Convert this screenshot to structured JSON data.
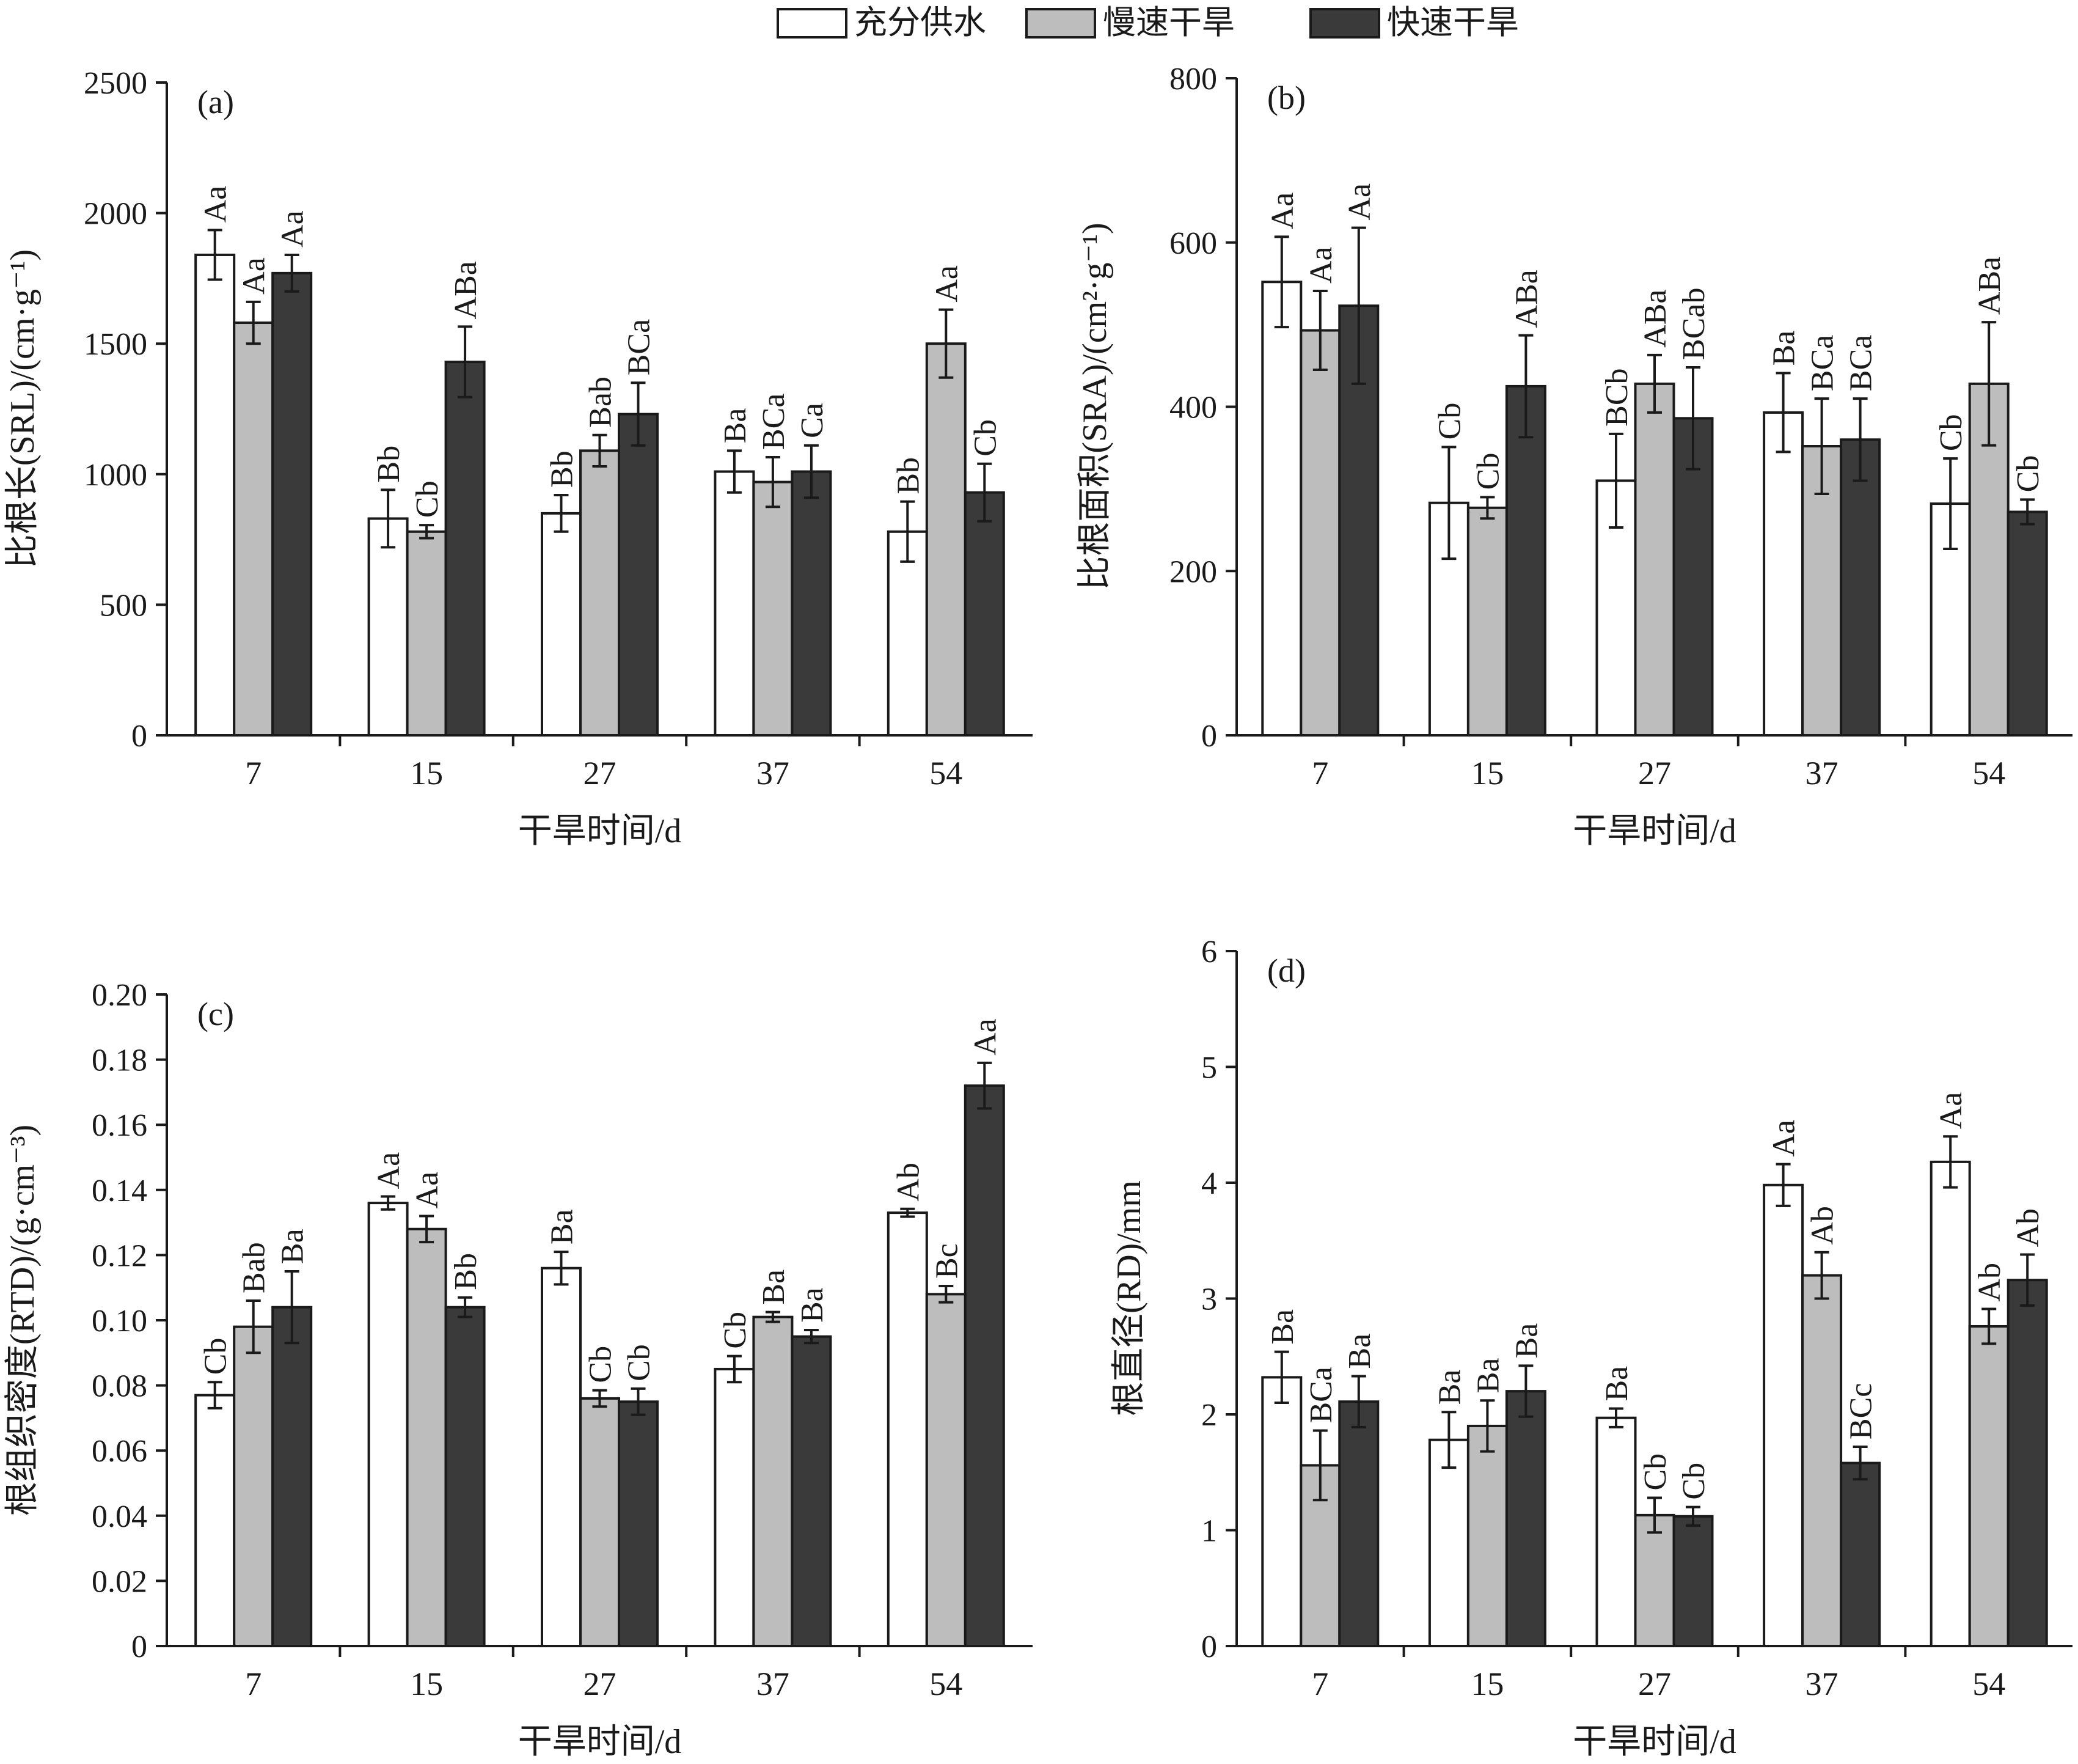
{
  "legend": [
    {
      "label": "充分供水",
      "color": "#ffffff"
    },
    {
      "label": "慢速干旱",
      "color": "#bdbdbd"
    },
    {
      "label": "快速干旱",
      "color": "#3a3a3a"
    }
  ],
  "chart_data": [
    {
      "panel": "(a)",
      "type": "bar",
      "ylabel": "比根长(SRL)/(cm·g⁻¹)",
      "xlabel": "干旱时间/d",
      "categories": [
        "7",
        "15",
        "27",
        "37",
        "54"
      ],
      "ylim": [
        0,
        2500
      ],
      "yticks": [
        0,
        500,
        1000,
        1500,
        2000,
        2500
      ],
      "series": [
        {
          "name": "充分供水",
          "values": [
            1840,
            830,
            850,
            1010,
            780
          ],
          "errors": [
            95,
            110,
            70,
            80,
            115
          ],
          "labels": [
            "Aa",
            "Bb",
            "Bb",
            "Ba",
            "Bb"
          ]
        },
        {
          "name": "慢速干旱",
          "values": [
            1580,
            780,
            1090,
            970,
            1500
          ],
          "errors": [
            80,
            25,
            60,
            95,
            130
          ],
          "labels": [
            "Aa",
            "Cb",
            "Bab",
            "BCa",
            "Aa"
          ]
        },
        {
          "name": "快速干旱",
          "values": [
            1770,
            1430,
            1230,
            1010,
            930
          ],
          "errors": [
            70,
            135,
            120,
            100,
            110
          ],
          "labels": [
            "Aa",
            "ABa",
            "BCa",
            "Ca",
            "Cb"
          ]
        }
      ]
    },
    {
      "panel": "(b)",
      "type": "bar",
      "ylabel": "比根面积(SRA)/(cm²·g⁻¹)",
      "xlabel": "干旱时间/d",
      "categories": [
        "7",
        "15",
        "27",
        "37",
        "54"
      ],
      "ylim": [
        0,
        800
      ],
      "yticks": [
        0,
        200,
        400,
        600,
        800
      ],
      "series": [
        {
          "name": "充分供水",
          "values": [
            552,
            283,
            310,
            393,
            282
          ],
          "errors": [
            55,
            68,
            57,
            48,
            55
          ],
          "labels": [
            "Aa",
            "Cb",
            "BCb",
            "Ba",
            "Cb"
          ]
        },
        {
          "name": "慢速干旱",
          "values": [
            493,
            277,
            428,
            352,
            428
          ],
          "errors": [
            48,
            13,
            35,
            58,
            75
          ],
          "labels": [
            "Aa",
            "Cb",
            "ABa",
            "BCa",
            "ABa"
          ]
        },
        {
          "name": "快速干旱",
          "values": [
            523,
            425,
            386,
            360,
            272
          ],
          "errors": [
            95,
            62,
            62,
            50,
            15
          ],
          "labels": [
            "Aa",
            "ABa",
            "BCab",
            "BCa",
            "Cb"
          ]
        }
      ]
    },
    {
      "panel": "(c)",
      "type": "bar",
      "ylabel": "根组织密度(RTD)/(g·cm⁻³)",
      "xlabel": "干旱时间/d",
      "categories": [
        "7",
        "15",
        "27",
        "37",
        "54"
      ],
      "ylim": [
        0,
        0.2
      ],
      "yticks": [
        "0",
        "0.02",
        "0.04",
        "0.06",
        "0.08",
        "0.10",
        "0.12",
        "0.14",
        "0.16",
        "0.18",
        "0.20"
      ],
      "series": [
        {
          "name": "充分供水",
          "values": [
            0.077,
            0.136,
            0.116,
            0.085,
            0.133
          ],
          "errors": [
            0.004,
            0.002,
            0.005,
            0.004,
            0.0012
          ],
          "labels": [
            "Cb",
            "Aa",
            "Ba",
            "Cb",
            "Ab"
          ]
        },
        {
          "name": "慢速干旱",
          "values": [
            0.098,
            0.128,
            0.076,
            0.101,
            0.108
          ],
          "errors": [
            0.008,
            0.004,
            0.0025,
            0.0015,
            0.0025
          ],
          "labels": [
            "Bab",
            "Aa",
            "Cb",
            "Ba",
            "Bc"
          ]
        },
        {
          "name": "快速干旱",
          "values": [
            0.104,
            0.104,
            0.075,
            0.095,
            0.172
          ],
          "errors": [
            0.011,
            0.003,
            0.004,
            0.002,
            0.007
          ],
          "labels": [
            "Ba",
            "Bb",
            "Cb",
            "Ba",
            "Aa"
          ]
        }
      ]
    },
    {
      "panel": "(d)",
      "type": "bar",
      "ylabel": "根直径(RD)/mm",
      "xlabel": "干旱时间/d",
      "categories": [
        "7",
        "15",
        "27",
        "37",
        "54"
      ],
      "ylim": [
        0,
        6
      ],
      "yticks": [
        0,
        1,
        2,
        3,
        4,
        5,
        6
      ],
      "series": [
        {
          "name": "充分供水",
          "values": [
            2.32,
            1.78,
            1.97,
            3.98,
            4.18
          ],
          "errors": [
            0.22,
            0.24,
            0.08,
            0.18,
            0.22
          ],
          "labels": [
            "Ba",
            "Ba",
            "Ba",
            "Aa",
            "Aa"
          ]
        },
        {
          "name": "慢速干旱",
          "values": [
            1.56,
            1.9,
            1.13,
            3.2,
            2.76
          ],
          "errors": [
            0.3,
            0.22,
            0.15,
            0.2,
            0.15
          ],
          "labels": [
            "BCa",
            "Ba",
            "Cb",
            "Ab",
            "Ab"
          ]
        },
        {
          "name": "快速干旱",
          "values": [
            2.11,
            2.2,
            1.12,
            1.58,
            3.16
          ],
          "errors": [
            0.22,
            0.22,
            0.08,
            0.14,
            0.22
          ],
          "labels": [
            "Ba",
            "Ba",
            "Cb",
            "BCc",
            "Ab"
          ]
        }
      ]
    }
  ]
}
